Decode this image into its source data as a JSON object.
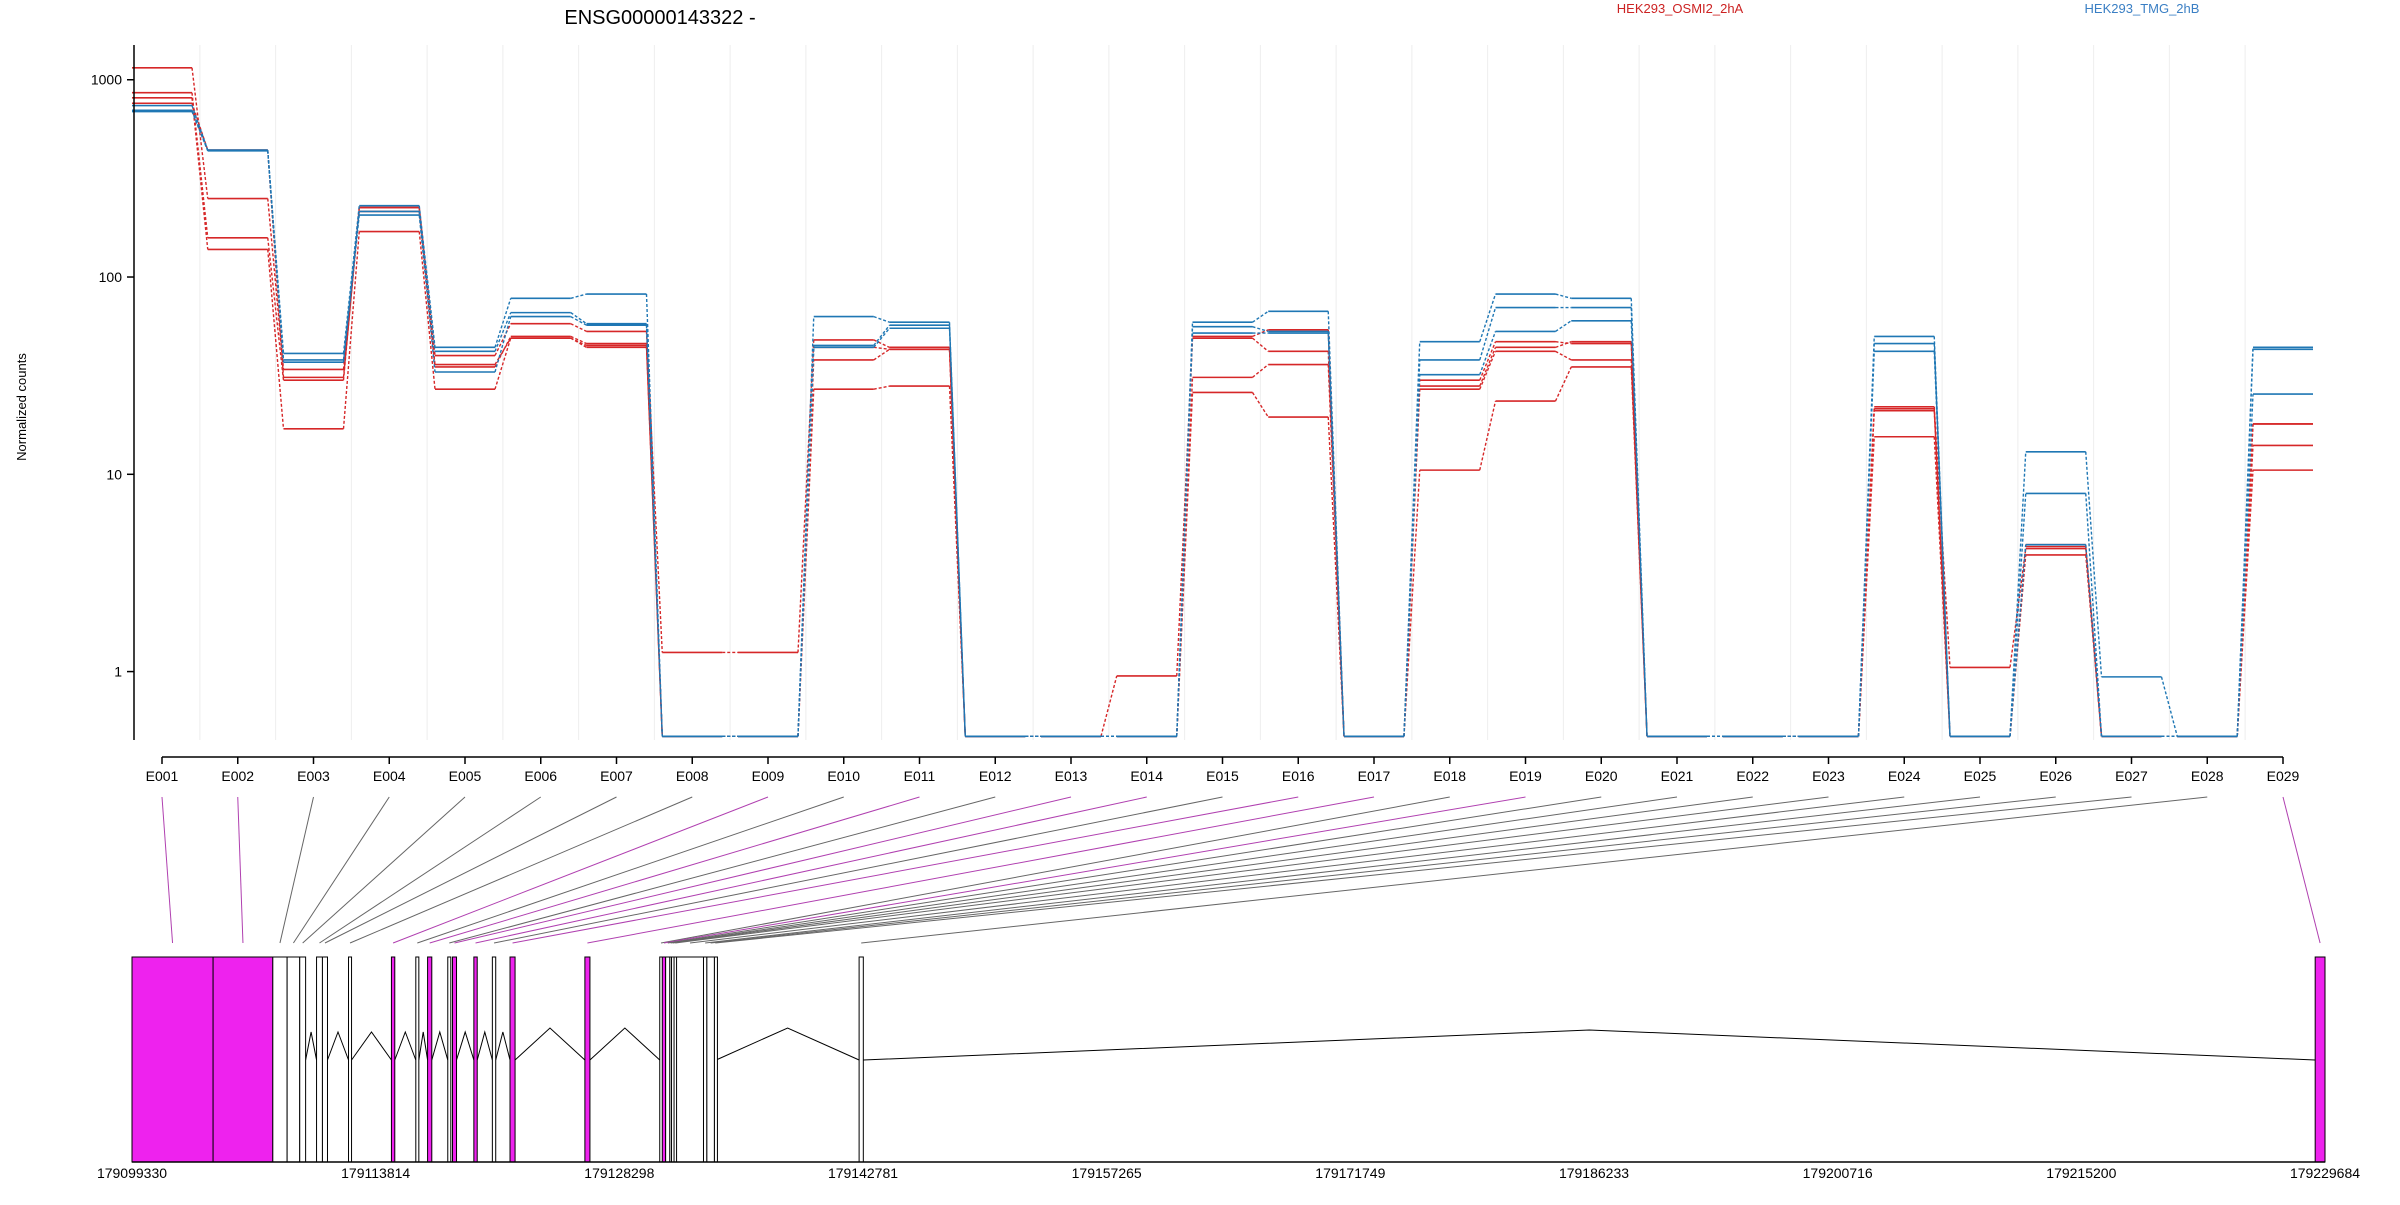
{
  "chart_data": {
    "type": "line",
    "title": "ENSG00000143322 -",
    "ylabel": "Normalized counts",
    "yscale": "log",
    "ylim": [
      0.45,
      1500
    ],
    "yticks": [
      1,
      10,
      100,
      1000
    ],
    "ytick_labels": [
      "1",
      "10",
      "100",
      "1000"
    ],
    "zero_floor_value": 0.47,
    "categories": [
      "E001",
      "E002",
      "E003",
      "E004",
      "E005",
      "E006",
      "E007",
      "E008",
      "E009",
      "E010",
      "E011",
      "E012",
      "E013",
      "E014",
      "E015",
      "E016",
      "E017",
      "E018",
      "E019",
      "E020",
      "E021",
      "E022",
      "E023",
      "E024",
      "E025",
      "E026",
      "E027",
      "E028",
      "E029"
    ],
    "legend": [
      {
        "name": "HEK293_OSMI2_2hA",
        "color": "#cc2222",
        "position": "top-center"
      },
      {
        "name": "HEK293_TMG_2hB",
        "color": "#3a7fc4",
        "position": "top-right"
      }
    ],
    "series": [
      {
        "group": "HEK293_OSMI2_2hA",
        "color": "#d62728",
        "values": [
          1150,
          250,
          34,
          225,
          40,
          58,
          53,
          1.25,
          1.25,
          48,
          44,
          0.47,
          0.47,
          0.95,
          49,
          42,
          0.47,
          30,
          47,
          46,
          0.47,
          0.47,
          0.47,
          22,
          1.05,
          4.2,
          0.47,
          0.47,
          18
        ]
      },
      {
        "group": "HEK293_OSMI2_2hA",
        "color": "#d62728",
        "values": [
          860,
          158,
          30,
          225,
          35,
          50,
          46,
          0.47,
          0.47,
          38,
          43,
          0.47,
          0.47,
          0.47,
          31,
          36,
          0.47,
          27,
          42,
          38,
          0.47,
          0.47,
          0.47,
          21,
          0.47,
          4.3,
          0.47,
          0.47,
          14
        ]
      },
      {
        "group": "HEK293_OSMI2_2hA",
        "color": "#d62728",
        "values": [
          810,
          138,
          17,
          170,
          27,
          49,
          44,
          0.47,
          0.47,
          27,
          28,
          0.47,
          0.47,
          0.47,
          26,
          19.5,
          0.47,
          10.5,
          23.5,
          35,
          0.47,
          0.47,
          0.47,
          15.5,
          0.47,
          3.9,
          0.47,
          0.47,
          10.5
        ]
      },
      {
        "group": "HEK293_OSMI2_2hA",
        "color": "#d62728",
        "values": [
          760,
          440,
          31,
          215,
          36,
          49,
          45,
          0.47,
          0.47,
          44,
          43,
          0.47,
          0.47,
          0.47,
          50,
          54,
          0.47,
          28,
          44,
          47,
          0.47,
          0.47,
          0.47,
          21.5,
          0.47,
          4.4,
          0.47,
          0.47,
          18
        ]
      },
      {
        "group": "HEK293_TMG_2hB",
        "color": "#1f77b4",
        "values": [
          740,
          440,
          41,
          230,
          44,
          78,
          82,
          0.47,
          0.47,
          63,
          59,
          0.47,
          0.47,
          0.47,
          59,
          67,
          0.47,
          47,
          82,
          78,
          0.47,
          0.47,
          0.47,
          50,
          0.47,
          13,
          0.94,
          0.47,
          44
        ]
      },
      {
        "group": "HEK293_TMG_2hB",
        "color": "#1f77b4",
        "values": [
          700,
          438,
          38,
          215,
          42,
          66,
          58,
          0.47,
          0.47,
          45,
          57,
          0.47,
          0.47,
          0.47,
          56,
          53,
          0.47,
          38,
          70,
          70,
          0.47,
          0.47,
          0.47,
          46,
          0.47,
          8,
          0.47,
          0.47,
          43
        ]
      },
      {
        "group": "HEK293_TMG_2hB",
        "color": "#1f77b4",
        "values": [
          690,
          436,
          37,
          206,
          33,
          63,
          57,
          0.47,
          0.47,
          44,
          55,
          0.47,
          0.47,
          0.47,
          52,
          52,
          0.47,
          32,
          53,
          60,
          0.47,
          0.47,
          0.47,
          42,
          0.47,
          4.4,
          0.47,
          0.47,
          25.5
        ]
      }
    ],
    "gene_model": {
      "coord_ticks": [
        "179099330",
        "179113814",
        "179128298",
        "179142781",
        "179157265",
        "179171749",
        "179186233",
        "179200716",
        "179215200",
        "179229684"
      ],
      "coord_range": [
        179099330,
        179229684
      ],
      "highlight_color": "#ee22ee",
      "exon_bins": [
        {
          "id": "E001",
          "start": 179099330,
          "end": 179104150,
          "highlight": true
        },
        {
          "id": "E002",
          "start": 179104150,
          "end": 179107700,
          "highlight": true
        },
        {
          "id": "E003",
          "start": 179107700,
          "end": 179108550,
          "highlight": false
        },
        {
          "id": "E004",
          "start": 179108550,
          "end": 179109300,
          "highlight": false
        },
        {
          "id": "E005",
          "start": 179109300,
          "end": 179109650,
          "highlight": false
        },
        {
          "id": "E006",
          "start": 179110300,
          "end": 179110650,
          "highlight": false
        },
        {
          "id": "E007",
          "start": 179110650,
          "end": 179110950,
          "highlight": false
        },
        {
          "id": "E008",
          "start": 179112200,
          "end": 179112380,
          "highlight": false
        },
        {
          "id": "E009",
          "start": 179114750,
          "end": 179114950,
          "highlight": true
        },
        {
          "id": "E010",
          "start": 179116200,
          "end": 179116380,
          "highlight": false
        },
        {
          "id": "E011",
          "start": 179116900,
          "end": 179117150,
          "highlight": true
        },
        {
          "id": "E012",
          "start": 179118100,
          "end": 179118280,
          "highlight": false
        },
        {
          "id": "E013",
          "start": 179118380,
          "end": 179118620,
          "highlight": true
        },
        {
          "id": "E014",
          "start": 179119650,
          "end": 179119850,
          "highlight": true
        },
        {
          "id": "E015",
          "start": 179120750,
          "end": 179120950,
          "highlight": false
        },
        {
          "id": "E016",
          "start": 179121800,
          "end": 179122100,
          "highlight": true
        },
        {
          "id": "E017",
          "start": 179126250,
          "end": 179126550,
          "highlight": true
        },
        {
          "id": "E018",
          "start": 179130700,
          "end": 179130850,
          "highlight": false
        },
        {
          "id": "E019",
          "start": 179130850,
          "end": 179131050,
          "highlight": true
        },
        {
          "id": "E020",
          "start": 179131050,
          "end": 179131300,
          "highlight": false
        },
        {
          "id": "E021",
          "start": 179131300,
          "end": 179131400,
          "highlight": false
        },
        {
          "id": "E022",
          "start": 179131400,
          "end": 179131550,
          "highlight": false
        },
        {
          "id": "E023",
          "start": 179131550,
          "end": 179131700,
          "highlight": false
        },
        {
          "id": "E024",
          "start": 179131700,
          "end": 179133300,
          "highlight": false
        },
        {
          "id": "E025",
          "start": 179133300,
          "end": 179133500,
          "highlight": false
        },
        {
          "id": "E026",
          "start": 179133500,
          "end": 179133950,
          "highlight": false
        },
        {
          "id": "E027",
          "start": 179133950,
          "end": 179134050,
          "highlight": false
        },
        {
          "id": "E028",
          "start": 179142550,
          "end": 179142800,
          "highlight": false
        },
        {
          "id": "E029",
          "start": 179229100,
          "end": 179229684,
          "highlight": true
        }
      ]
    }
  }
}
